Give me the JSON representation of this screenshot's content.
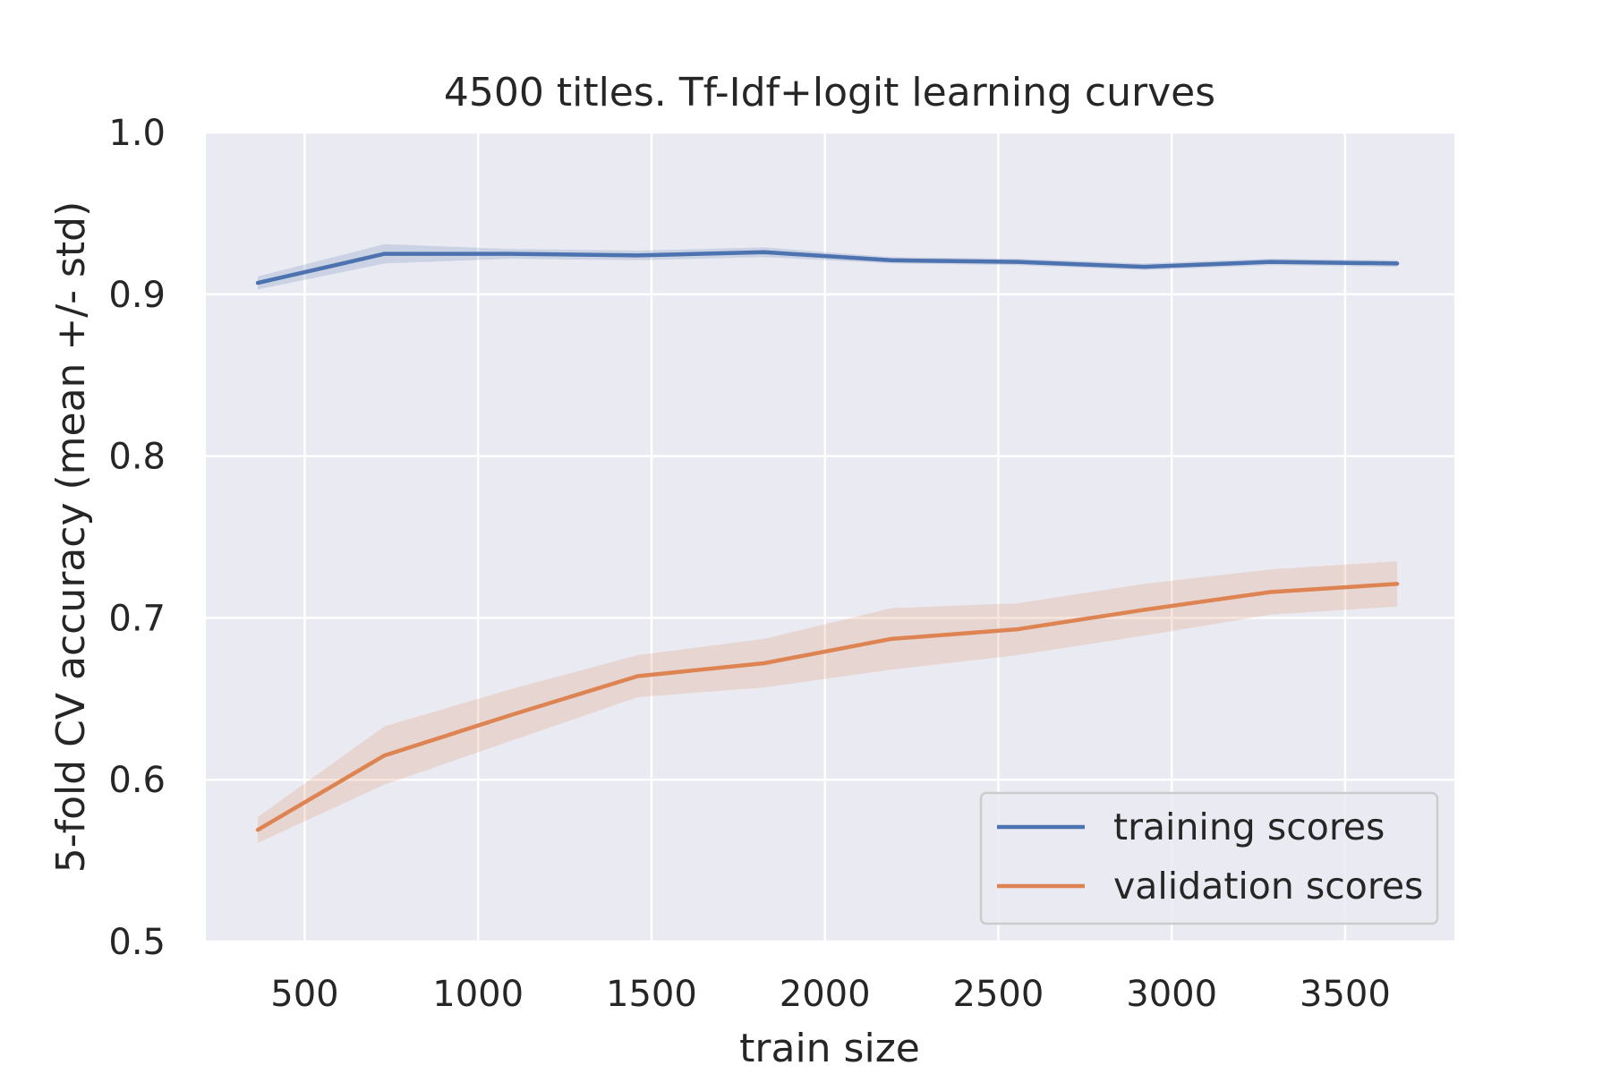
{
  "chart_data": {
    "type": "line",
    "title": "4500 titles. Tf-Idf+logit learning curves",
    "xlabel": "train size",
    "ylabel": "5-fold CV accuracy (mean +/- std)",
    "xlim": [
      215,
      3815
    ],
    "ylim": [
      0.5,
      1.0
    ],
    "xticks": [
      500,
      1000,
      1500,
      2000,
      2500,
      3000,
      3500
    ],
    "yticks": [
      0.5,
      0.6,
      0.7,
      0.8,
      0.9,
      1.0
    ],
    "xtick_labels": [
      "500",
      "1000",
      "1500",
      "2000",
      "2500",
      "3000",
      "3500"
    ],
    "ytick_labels": [
      "0.5",
      "0.6",
      "0.7",
      "0.8",
      "0.9",
      "1.0"
    ],
    "grid": true,
    "legend_position": "bottom-right",
    "x": [
      365,
      730,
      1095,
      1460,
      1825,
      2190,
      2555,
      2920,
      3285,
      3650
    ],
    "series": [
      {
        "name": "training scores",
        "color": "#4c72b0",
        "values": [
          0.907,
          0.925,
          0.925,
          0.924,
          0.926,
          0.921,
          0.92,
          0.917,
          0.92,
          0.919
        ],
        "std": [
          0.004,
          0.006,
          0.003,
          0.003,
          0.003,
          0.002,
          0.002,
          0.002,
          0.002,
          0.002
        ]
      },
      {
        "name": "validation scores",
        "color": "#dd8452",
        "values": [
          0.569,
          0.615,
          0.64,
          0.664,
          0.672,
          0.687,
          0.693,
          0.705,
          0.716,
          0.721
        ],
        "std": [
          0.008,
          0.018,
          0.016,
          0.013,
          0.015,
          0.019,
          0.016,
          0.016,
          0.014,
          0.014
        ]
      }
    ]
  },
  "colors": {
    "plot_background": "#eaeaf2",
    "grid": "#ffffff",
    "text": "#262626"
  }
}
